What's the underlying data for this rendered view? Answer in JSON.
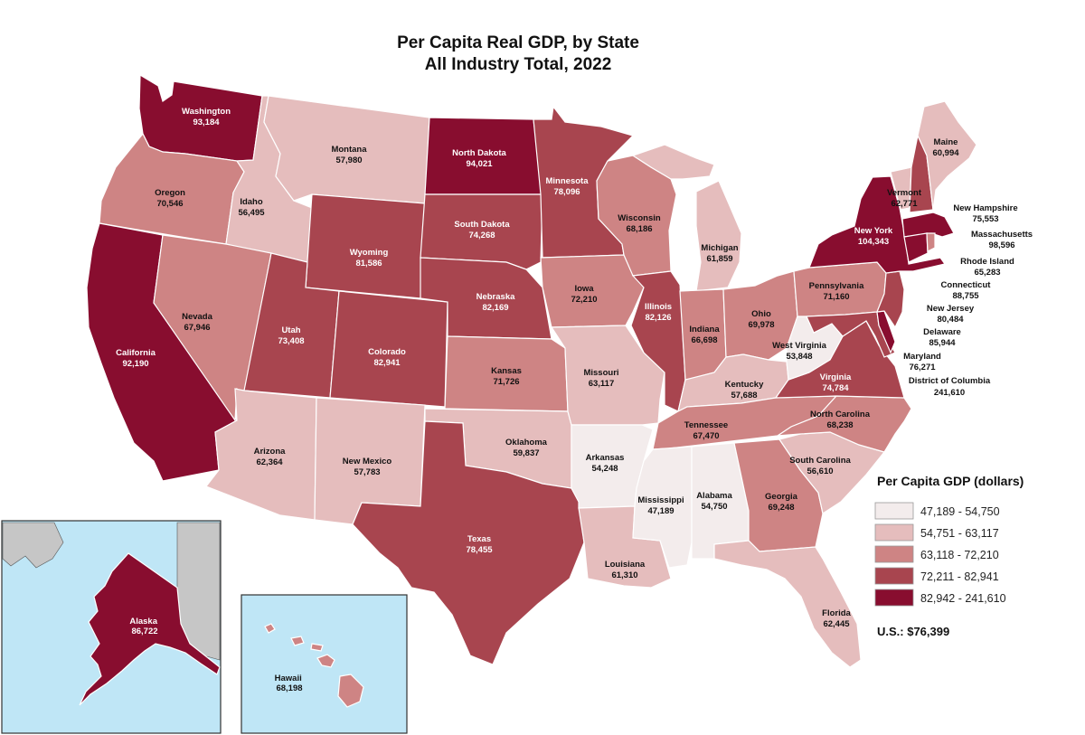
{
  "title": [
    "Per Capita Real GDP, by State",
    "All Industry Total, 2022"
  ],
  "colors": {
    "c1": "#f3ecec",
    "c2": "#e5bdbd",
    "c3": "#ce8484",
    "c4": "#a8454f",
    "c5": "#880d2f",
    "water": "#bfe6f6",
    "land_other": "#c6c6c6",
    "border": "#ffffff"
  },
  "legend": {
    "title": "Per Capita GDP (dollars)",
    "classes": [
      {
        "range": "47,189 - 54,750",
        "color": "#f3ecec"
      },
      {
        "range": "54,751 - 63,117",
        "color": "#e5bdbd"
      },
      {
        "range": "63,118 - 72,210",
        "color": "#ce8484"
      },
      {
        "range": "72,211 - 82,941",
        "color": "#a8454f"
      },
      {
        "range": "82,942 - 241,610",
        "color": "#880d2f"
      }
    ],
    "us_total": "U.S.: $76,399"
  },
  "states": {
    "washington": {
      "name": "Washington",
      "value": "93,184",
      "cls": 5
    },
    "oregon": {
      "name": "Oregon",
      "value": "70,546",
      "cls": 3
    },
    "california": {
      "name": "California",
      "value": "92,190",
      "cls": 5
    },
    "idaho": {
      "name": "Idaho",
      "value": "56,495",
      "cls": 2
    },
    "nevada": {
      "name": "Nevada",
      "value": "67,946",
      "cls": 3
    },
    "montana": {
      "name": "Montana",
      "value": "57,980",
      "cls": 2
    },
    "wyoming": {
      "name": "Wyoming",
      "value": "81,586",
      "cls": 4
    },
    "utah": {
      "name": "Utah",
      "value": "73,408",
      "cls": 4
    },
    "arizona": {
      "name": "Arizona",
      "value": "62,364",
      "cls": 2
    },
    "colorado": {
      "name": "Colorado",
      "value": "82,941",
      "cls": 4
    },
    "new_mexico": {
      "name": "New Mexico",
      "value": "57,783",
      "cls": 2
    },
    "north_dakota": {
      "name": "North Dakota",
      "value": "94,021",
      "cls": 5
    },
    "south_dakota": {
      "name": "South Dakota",
      "value": "74,268",
      "cls": 4
    },
    "nebraska": {
      "name": "Nebraska",
      "value": "82,169",
      "cls": 4
    },
    "kansas": {
      "name": "Kansas",
      "value": "71,726",
      "cls": 3
    },
    "oklahoma": {
      "name": "Oklahoma",
      "value": "59,837",
      "cls": 2
    },
    "texas": {
      "name": "Texas",
      "value": "78,455",
      "cls": 4
    },
    "minnesota": {
      "name": "Minnesota",
      "value": "78,096",
      "cls": 4
    },
    "iowa": {
      "name": "Iowa",
      "value": "72,210",
      "cls": 3
    },
    "missouri": {
      "name": "Missouri",
      "value": "63,117",
      "cls": 2
    },
    "arkansas": {
      "name": "Arkansas",
      "value": "54,248",
      "cls": 1
    },
    "louisiana": {
      "name": "Louisiana",
      "value": "61,310",
      "cls": 2
    },
    "wisconsin": {
      "name": "Wisconsin",
      "value": "68,186",
      "cls": 3
    },
    "illinois": {
      "name": "Illinois",
      "value": "82,126",
      "cls": 4
    },
    "michigan": {
      "name": "Michigan",
      "value": "61,859",
      "cls": 2
    },
    "indiana": {
      "name": "Indiana",
      "value": "66,698",
      "cls": 3
    },
    "ohio": {
      "name": "Ohio",
      "value": "69,978",
      "cls": 3
    },
    "kentucky": {
      "name": "Kentucky",
      "value": "57,688",
      "cls": 2
    },
    "tennessee": {
      "name": "Tennessee",
      "value": "67,470",
      "cls": 3
    },
    "mississippi": {
      "name": "Mississippi",
      "value": "47,189",
      "cls": 1
    },
    "alabama": {
      "name": "Alabama",
      "value": "54,750",
      "cls": 1
    },
    "georgia": {
      "name": "Georgia",
      "value": "69,248",
      "cls": 3
    },
    "florida": {
      "name": "Florida",
      "value": "62,445",
      "cls": 2
    },
    "south_carolina": {
      "name": "South Carolina",
      "value": "56,610",
      "cls": 2
    },
    "north_carolina": {
      "name": "North Carolina",
      "value": "68,238",
      "cls": 3
    },
    "virginia": {
      "name": "Virginia",
      "value": "74,784",
      "cls": 4
    },
    "west_virginia": {
      "name": "West Virginia",
      "value": "53,848",
      "cls": 1
    },
    "pennsylvania": {
      "name": "Pennsylvania",
      "value": "71,160",
      "cls": 3
    },
    "new_york": {
      "name": "New York",
      "value": "104,343",
      "cls": 5
    },
    "vermont": {
      "name": "Vermont",
      "value": "62,771",
      "cls": 2
    },
    "maine": {
      "name": "Maine",
      "value": "60,994",
      "cls": 2
    },
    "new_hampshire": {
      "name": "New Hampshire",
      "value": "75,553",
      "cls": 4
    },
    "massachusetts": {
      "name": "Massachusetts",
      "value": "98,596",
      "cls": 5
    },
    "rhode_island": {
      "name": "Rhode Island",
      "value": "65,283",
      "cls": 3
    },
    "connecticut": {
      "name": "Connecticut",
      "value": "88,755",
      "cls": 5
    },
    "new_jersey": {
      "name": "New Jersey",
      "value": "80,484",
      "cls": 4
    },
    "delaware": {
      "name": "Delaware",
      "value": "85,944",
      "cls": 5
    },
    "maryland": {
      "name": "Maryland",
      "value": "76,271",
      "cls": 4
    },
    "dc": {
      "name": "District of Columbia",
      "value": "241,610",
      "cls": 5
    },
    "alaska": {
      "name": "Alaska",
      "value": "86,722",
      "cls": 5
    },
    "hawaii": {
      "name": "Hawaii",
      "value": "68,198",
      "cls": 3
    }
  }
}
